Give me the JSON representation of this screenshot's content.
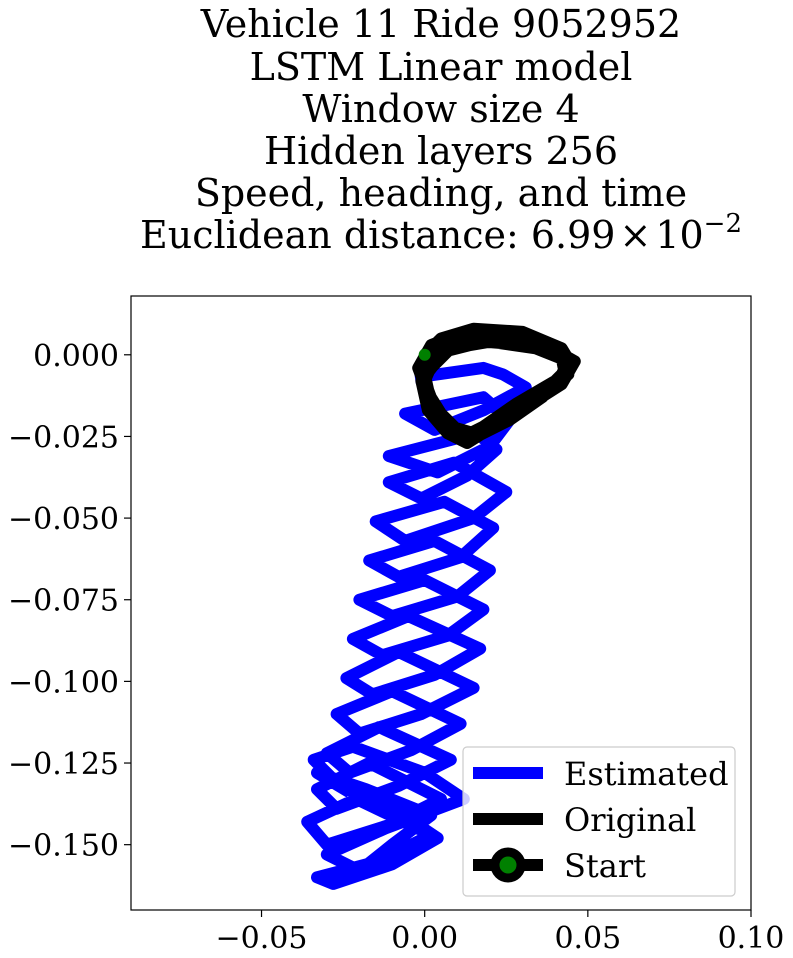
{
  "chart_data": {
    "type": "line",
    "title_lines": [
      "Vehicle 11 Ride 9052952",
      "LSTM Linear model",
      "Window size 4",
      "Hidden layers 256",
      "Speed, heading, and time"
    ],
    "distance": {
      "label": "Euclidean distance: ",
      "mantissa": "6.99",
      "times": "×",
      "base": "10",
      "exponent": "−2"
    },
    "xlim": [
      -0.09,
      0.1
    ],
    "ylim": [
      -0.17,
      0.018
    ],
    "x_ticks": [
      {
        "value": -0.05,
        "label": "−0.05"
      },
      {
        "value": 0.0,
        "label": "0.00"
      },
      {
        "value": 0.05,
        "label": "0.05"
      },
      {
        "value": 0.1,
        "label": "0.10"
      }
    ],
    "y_ticks": [
      {
        "value": 0.0,
        "label": "0.000"
      },
      {
        "value": -0.025,
        "label": "−0.025"
      },
      {
        "value": -0.05,
        "label": "−0.050"
      },
      {
        "value": -0.075,
        "label": "−0.075"
      },
      {
        "value": -0.1,
        "label": "−0.100"
      },
      {
        "value": -0.125,
        "label": "−0.125"
      },
      {
        "value": -0.15,
        "label": "−0.150"
      }
    ],
    "grid": false,
    "legend_position": "lower-right",
    "series": [
      {
        "name": "Estimated",
        "color": "#0000ff",
        "x": [
          -0.003,
          0.018,
          0.024,
          0.031,
          0.018,
          0.003,
          -0.006,
          0.018,
          0.026,
          0.02,
          0.004,
          -0.011,
          0.016,
          0.022,
          0.013,
          -0.001,
          -0.011,
          0.009,
          0.025,
          0.015,
          -0.006,
          -0.015,
          0.006,
          0.021,
          0.011,
          -0.008,
          -0.017,
          0.003,
          0.02,
          0.01,
          -0.01,
          -0.02,
          0.0,
          0.018,
          0.007,
          -0.013,
          -0.022,
          -0.005,
          0.017,
          0.003,
          -0.016,
          -0.024,
          -0.008,
          0.015,
          -0.001,
          -0.02,
          -0.027,
          -0.01,
          0.011,
          -0.004,
          -0.023,
          -0.03,
          -0.014,
          0.008,
          -0.008,
          -0.027,
          -0.033,
          -0.017,
          0.005,
          -0.011,
          -0.03,
          -0.036,
          -0.021,
          0.002,
          -0.014,
          -0.033,
          -0.028,
          -0.01,
          0.004,
          -0.008,
          -0.026,
          -0.034,
          -0.022,
          0.0,
          0.012,
          -0.012,
          -0.03,
          -0.02,
          -0.01,
          0.002,
          -0.018,
          -0.033,
          -0.023
        ],
        "y": [
          -0.007,
          -0.004,
          -0.006,
          -0.01,
          -0.017,
          -0.023,
          -0.018,
          -0.013,
          -0.02,
          -0.028,
          -0.036,
          -0.031,
          -0.024,
          -0.029,
          -0.037,
          -0.044,
          -0.039,
          -0.033,
          -0.042,
          -0.05,
          -0.057,
          -0.051,
          -0.045,
          -0.053,
          -0.062,
          -0.068,
          -0.063,
          -0.057,
          -0.066,
          -0.074,
          -0.08,
          -0.075,
          -0.069,
          -0.078,
          -0.086,
          -0.092,
          -0.087,
          -0.08,
          -0.09,
          -0.098,
          -0.104,
          -0.099,
          -0.091,
          -0.102,
          -0.11,
          -0.116,
          -0.11,
          -0.103,
          -0.113,
          -0.121,
          -0.128,
          -0.122,
          -0.114,
          -0.124,
          -0.132,
          -0.139,
          -0.133,
          -0.125,
          -0.136,
          -0.144,
          -0.15,
          -0.143,
          -0.136,
          -0.147,
          -0.155,
          -0.16,
          -0.162,
          -0.156,
          -0.148,
          -0.14,
          -0.132,
          -0.124,
          -0.12,
          -0.128,
          -0.136,
          -0.145,
          -0.153,
          -0.158,
          -0.15,
          -0.141,
          -0.133,
          -0.128,
          -0.134
        ]
      },
      {
        "name": "Original",
        "color": "#000000",
        "x": [
          0.0,
          0.005,
          0.015,
          0.03,
          0.042,
          0.045,
          0.04,
          0.028,
          0.018,
          0.012,
          0.006,
          0.001,
          -0.002,
          0.002,
          0.01,
          0.022,
          0.034,
          0.043,
          0.044,
          0.036,
          0.025,
          0.015,
          0.008,
          0.003,
          0.0,
          0.004,
          0.014,
          0.027,
          0.039,
          0.046,
          0.042,
          0.031,
          0.021,
          0.013,
          0.007,
          0.001,
          -0.001,
          0.006,
          0.018,
          0.032,
          0.042,
          0.043,
          0.036,
          0.026,
          0.016,
          0.008,
          0.002,
          0.0,
          0.008,
          0.02,
          0.034,
          0.044,
          0.04,
          0.03,
          0.02,
          0.012,
          0.005,
          0.0
        ],
        "y": [
          0.0,
          0.005,
          0.008,
          0.007,
          0.002,
          -0.003,
          -0.008,
          -0.015,
          -0.022,
          -0.025,
          -0.02,
          -0.012,
          -0.004,
          0.003,
          0.006,
          0.006,
          0.003,
          -0.001,
          -0.006,
          -0.012,
          -0.019,
          -0.024,
          -0.022,
          -0.016,
          -0.008,
          0.001,
          0.005,
          0.005,
          0.002,
          -0.002,
          -0.009,
          -0.016,
          -0.022,
          -0.027,
          -0.024,
          -0.017,
          -0.008,
          0.001,
          0.004,
          0.003,
          -0.001,
          -0.006,
          -0.013,
          -0.02,
          -0.025,
          -0.023,
          -0.015,
          -0.006,
          0.002,
          0.004,
          0.002,
          -0.002,
          -0.01,
          -0.017,
          -0.023,
          -0.025,
          -0.018,
          -0.01
        ]
      }
    ],
    "start_point": {
      "name": "Start",
      "x": 0.0,
      "y": 0.0,
      "edge_color": "#000000",
      "face_color": "#008000"
    }
  }
}
